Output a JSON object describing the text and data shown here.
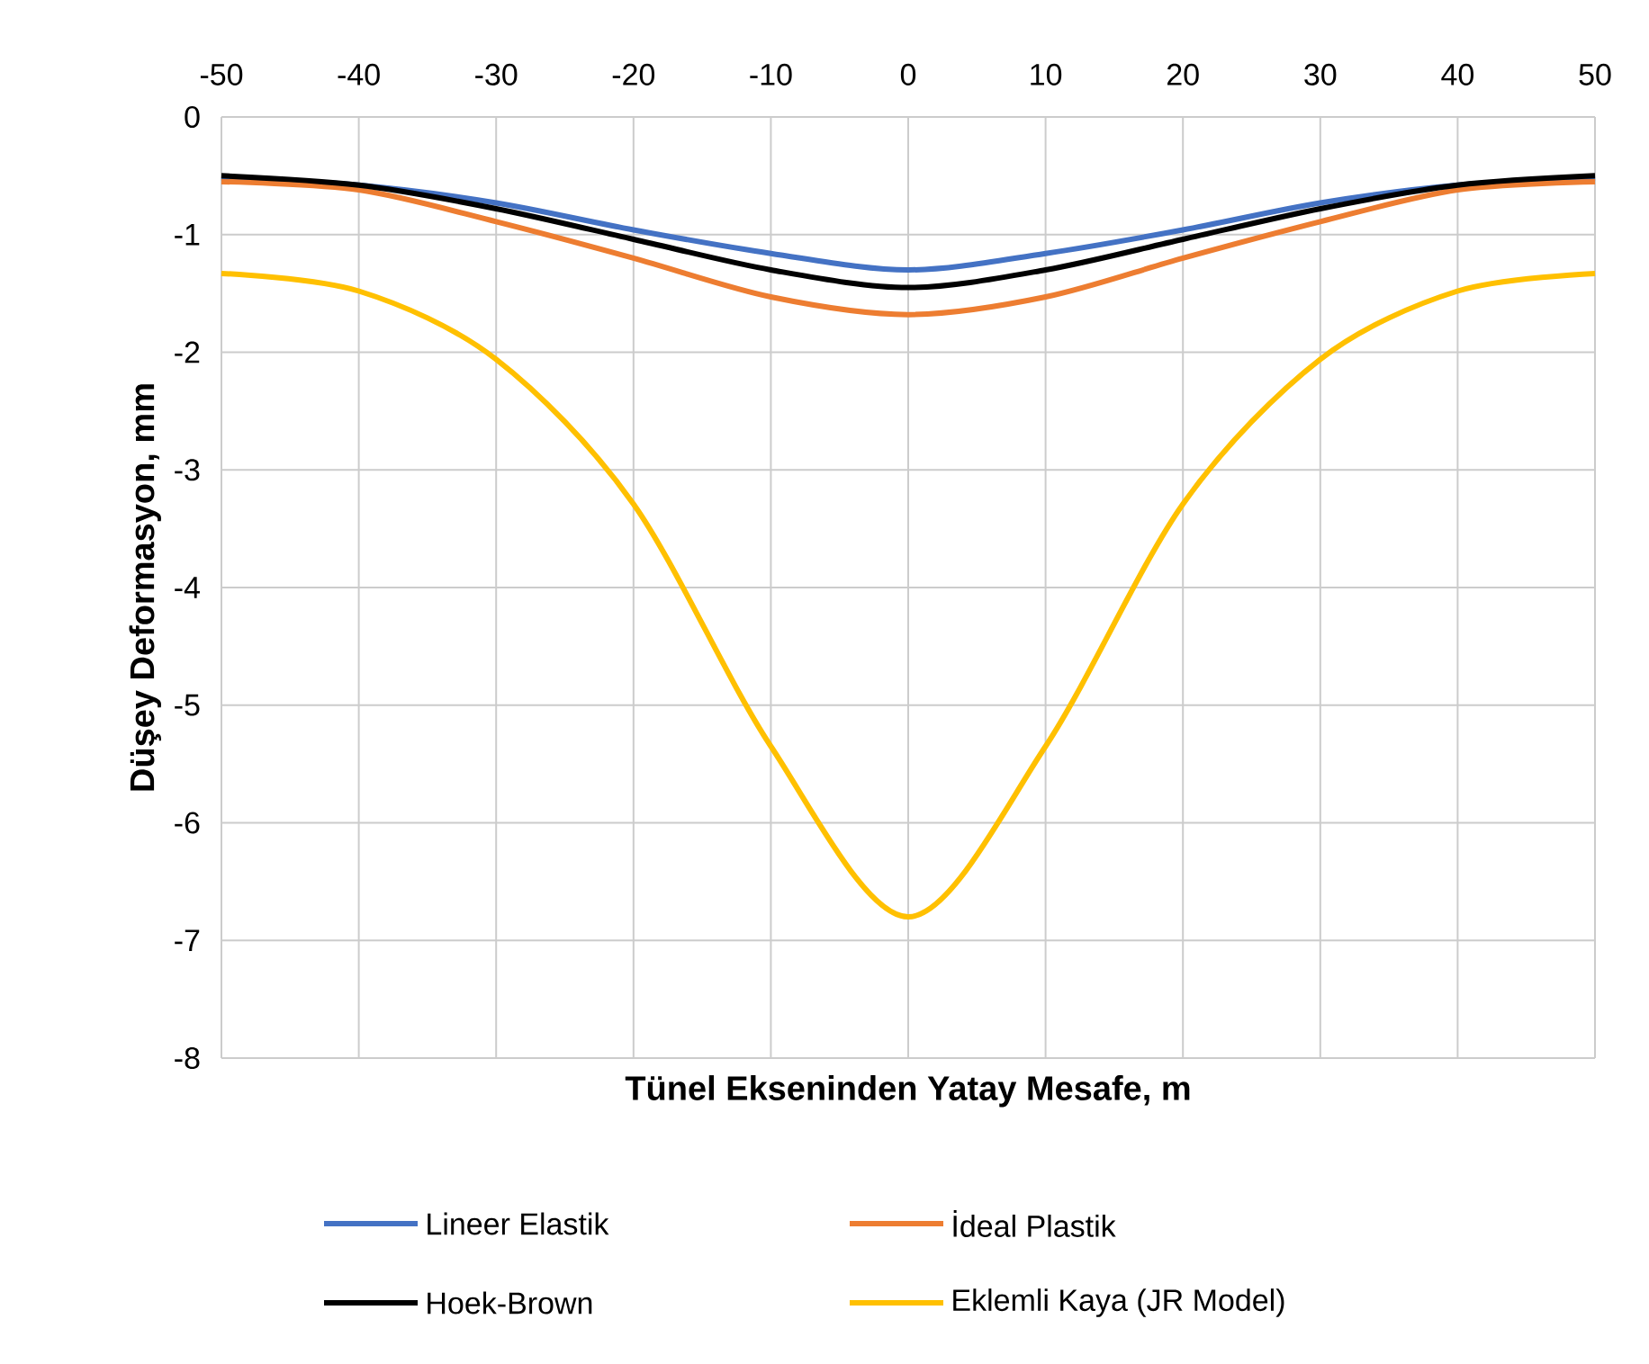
{
  "chart_data": {
    "type": "line",
    "xlabel": "Tünel Ekseninden Yatay Mesafe, m",
    "ylabel": "Düşey Deformasyon, mm",
    "x": [
      -50,
      -40,
      -30,
      -20,
      -10,
      0,
      10,
      20,
      30,
      40,
      50
    ],
    "series": [
      {
        "name": "Lineer Elastik",
        "color": "#4472c4",
        "values": [
          -0.52,
          -0.58,
          -0.73,
          -0.96,
          -1.16,
          -1.3,
          -1.16,
          -0.96,
          -0.73,
          -0.58,
          -0.52
        ]
      },
      {
        "name": "İdeal Plastik",
        "color": "#ed7d31",
        "values": [
          -0.55,
          -0.62,
          -0.89,
          -1.2,
          -1.53,
          -1.68,
          -1.53,
          -1.2,
          -0.89,
          -0.62,
          -0.55
        ]
      },
      {
        "name": "Hoek-Brown",
        "color": "#000000",
        "values": [
          -0.5,
          -0.58,
          -0.78,
          -1.04,
          -1.3,
          -1.45,
          -1.3,
          -1.04,
          -0.78,
          -0.58,
          -0.5
        ]
      },
      {
        "name": "Eklemli Kaya (JR Model)",
        "color": "#ffc000",
        "values": [
          -1.33,
          -1.48,
          -2.06,
          -3.29,
          -5.35,
          -6.8,
          -5.35,
          -3.29,
          -2.06,
          -1.48,
          -1.33
        ]
      }
    ],
    "xlim": [
      -50,
      50
    ],
    "xticks": [
      -50,
      -40,
      -30,
      -20,
      -10,
      0,
      10,
      20,
      30,
      40,
      50
    ],
    "ylim": [
      -8,
      0
    ],
    "yticks": [
      -8,
      -7,
      -6,
      -5,
      -4,
      -3,
      -2,
      -1,
      0
    ],
    "grid": true,
    "legend": "bottom",
    "marker": "none",
    "line_style": "solid"
  }
}
